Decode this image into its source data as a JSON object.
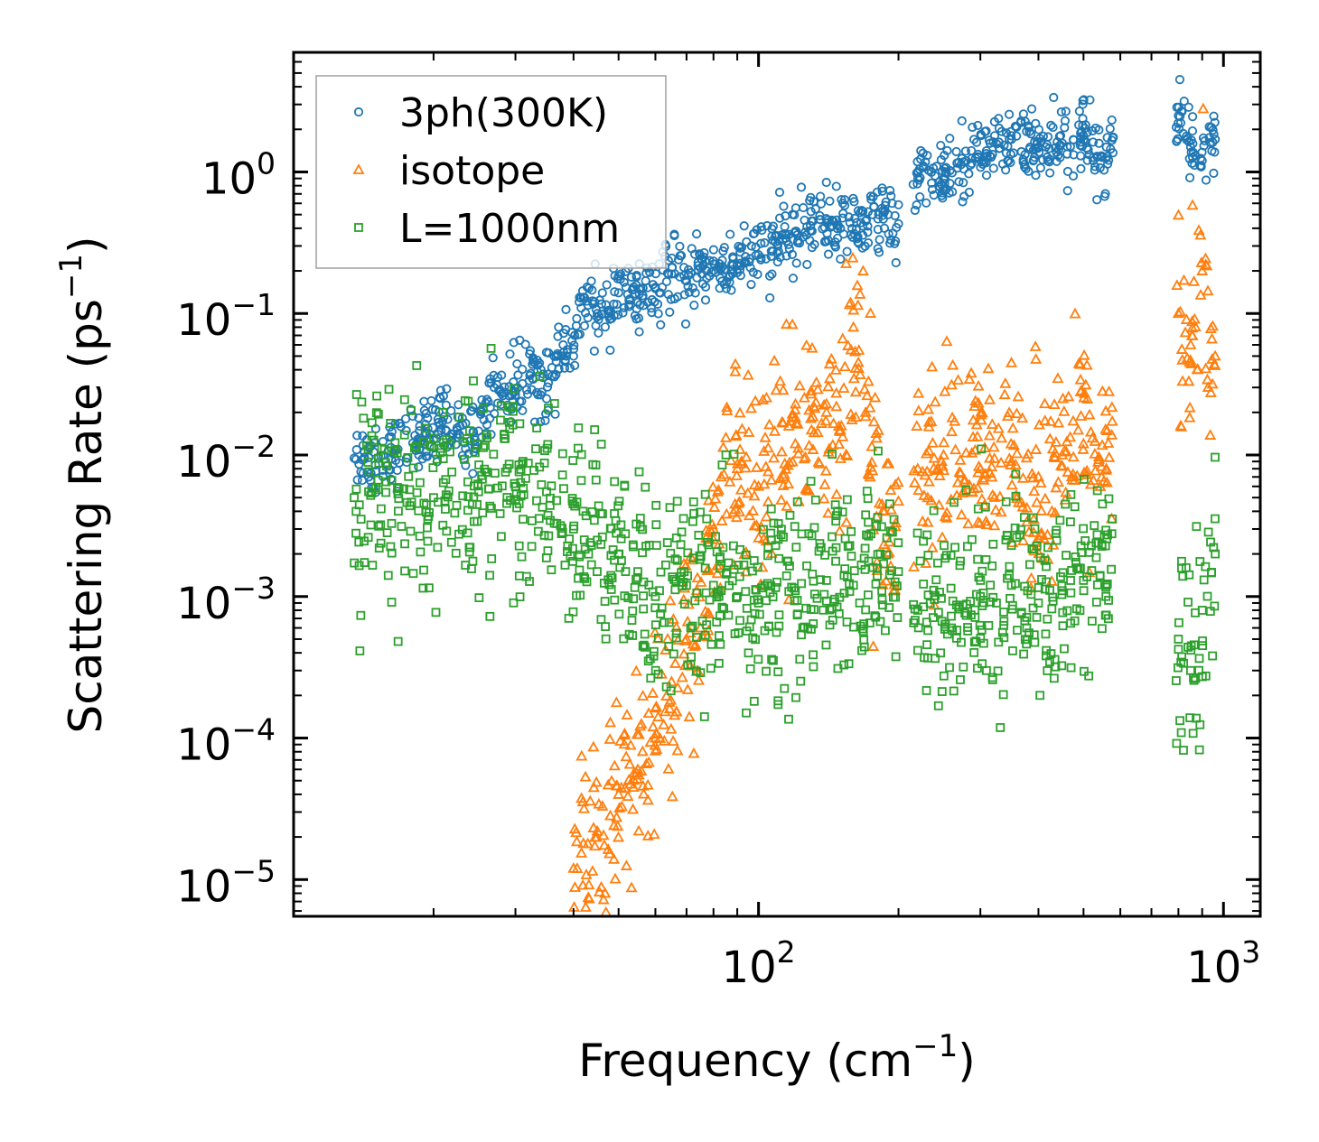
{
  "chart_data": {
    "type": "scatter",
    "title": "",
    "xlabel": "Frequency (cm",
    "xlabel_sup": "−1",
    "xlabel_end": ")",
    "ylabel": "Scattering Rate (ps",
    "ylabel_sup": "−1",
    "ylabel_end": ")",
    "xscale": "log",
    "yscale": "log",
    "xlim": [
      10,
      1200
    ],
    "ylim": [
      5.5e-06,
      7
    ],
    "x_ticks": [
      {
        "value": 100,
        "base": "10",
        "exp": "2"
      },
      {
        "value": 1000,
        "base": "10",
        "exp": "3"
      }
    ],
    "y_ticks": [
      {
        "value": 1e-05,
        "base": "10",
        "exp": "−5"
      },
      {
        "value": 0.0001,
        "base": "10",
        "exp": "−4"
      },
      {
        "value": 0.001,
        "base": "10",
        "exp": "−3"
      },
      {
        "value": 0.01,
        "base": "10",
        "exp": "−2"
      },
      {
        "value": 0.1,
        "base": "10",
        "exp": "−1"
      },
      {
        "value": 1,
        "base": "10",
        "exp": "0"
      }
    ],
    "legend_position": "top-left",
    "series": [
      {
        "name": "3ph(300K)",
        "marker": "circle",
        "color": "#1f77b4",
        "approx_points": [
          [
            13.5,
            0.0095
          ],
          [
            14.2,
            0.0105
          ],
          [
            15.0,
            0.0085
          ],
          [
            20.5,
            0.017
          ],
          [
            22.5,
            0.015
          ],
          [
            24.5,
            0.0135
          ],
          [
            27,
            0.03
          ],
          [
            30,
            0.028
          ],
          [
            33,
            0.045
          ],
          [
            35,
            0.025
          ],
          [
            38,
            0.06
          ],
          [
            40,
            0.05
          ],
          [
            42,
            0.13
          ],
          [
            45,
            0.1
          ],
          [
            50,
            0.14
          ],
          [
            55,
            0.12
          ],
          [
            60,
            0.15
          ],
          [
            65,
            0.19
          ],
          [
            70,
            0.17
          ],
          [
            75,
            0.21
          ],
          [
            80,
            0.2
          ],
          [
            90,
            0.22
          ],
          [
            100,
            0.26
          ],
          [
            110,
            0.3
          ],
          [
            120,
            0.38
          ],
          [
            130,
            0.45
          ],
          [
            150,
            0.4
          ],
          [
            170,
            0.45
          ],
          [
            190,
            0.5
          ],
          [
            200,
            0.43
          ],
          [
            220,
            1.0
          ],
          [
            250,
            0.9
          ],
          [
            280,
            1.2
          ],
          [
            310,
            1.3
          ],
          [
            350,
            1.7
          ],
          [
            400,
            1.5
          ],
          [
            450,
            1.6
          ],
          [
            500,
            1.8
          ],
          [
            560,
            1.5
          ],
          [
            800,
            2.5
          ],
          [
            850,
            1.5
          ],
          [
            900,
            1.2
          ],
          [
            960,
            1.7
          ]
        ]
      },
      {
        "name": "isotope",
        "marker": "triangle",
        "color": "#ff7f0e",
        "approx_points": [
          [
            40,
            1.2e-05
          ],
          [
            42,
            1.8e-05
          ],
          [
            45,
            2.2e-05
          ],
          [
            50,
            4e-05
          ],
          [
            55,
            6e-05
          ],
          [
            60,
            0.0001
          ],
          [
            65,
            0.00025
          ],
          [
            70,
            0.0005
          ],
          [
            75,
            0.0006
          ],
          [
            80,
            0.003
          ],
          [
            90,
            0.008
          ],
          [
            100,
            0.006
          ],
          [
            120,
            0.012
          ],
          [
            130,
            0.015
          ],
          [
            140,
            0.02
          ],
          [
            150,
            0.015
          ],
          [
            160,
            0.08
          ],
          [
            170,
            0.02
          ],
          [
            190,
            0.002
          ],
          [
            220,
            0.008
          ],
          [
            250,
            0.01
          ],
          [
            300,
            0.008
          ],
          [
            350,
            0.009
          ],
          [
            400,
            0.007
          ],
          [
            450,
            0.01
          ],
          [
            500,
            0.012
          ],
          [
            560,
            0.008
          ],
          [
            800,
            0.1
          ],
          [
            850,
            0.06
          ],
          [
            900,
            0.2
          ],
          [
            960,
            0.05
          ]
        ]
      },
      {
        "name": "L=1000nm",
        "marker": "square",
        "color": "#2ca02c",
        "approx_points": [
          [
            13.5,
            0.005
          ],
          [
            14.5,
            0.0055
          ],
          [
            15.2,
            0.0057
          ],
          [
            20,
            0.005
          ],
          [
            25,
            0.0055
          ],
          [
            30,
            0.006
          ],
          [
            35,
            0.0055
          ],
          [
            40,
            0.003
          ],
          [
            45,
            0.0025
          ],
          [
            50,
            0.002
          ],
          [
            55,
            0.0015
          ],
          [
            60,
            0.001
          ],
          [
            70,
            0.0012
          ],
          [
            80,
            0.0012
          ],
          [
            90,
            0.001
          ],
          [
            100,
            0.0009
          ],
          [
            120,
            0.0011
          ],
          [
            140,
            0.0013
          ],
          [
            160,
            0.0012
          ],
          [
            180,
            0.0014
          ],
          [
            200,
            0.0015
          ],
          [
            220,
            0.0008
          ],
          [
            260,
            0.0006
          ],
          [
            300,
            0.001
          ],
          [
            350,
            0.0012
          ],
          [
            400,
            0.0009
          ],
          [
            450,
            0.0011
          ],
          [
            500,
            0.0013
          ],
          [
            560,
            0.0012
          ],
          [
            800,
            0.0005
          ],
          [
            850,
            0.0003
          ],
          [
            900,
            0.0008
          ],
          [
            960,
            0.002
          ]
        ]
      }
    ]
  }
}
